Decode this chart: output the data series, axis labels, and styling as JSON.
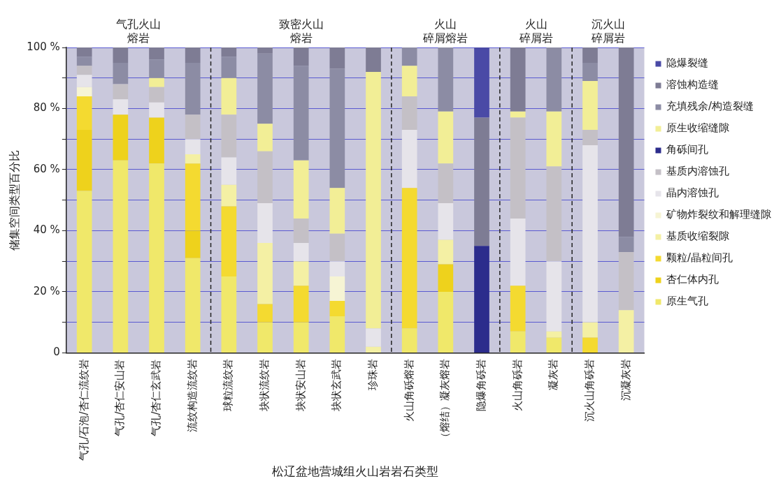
{
  "chart_data": {
    "type": "bar",
    "stacked": true,
    "xlabel": "松辽盆地营城组火山岩岩石类型",
    "ylabel": "储集空间类型百分比",
    "categories": [
      "气孔/石泡/杏仁流纹岩",
      "气孔/杏仁安山岩",
      "气孔/杏仁玄武岩",
      "流纹构造流纹岩",
      "球粒流纹岩",
      "块状流纹岩",
      "块状安山岩",
      "块状玄武岩",
      "珍珠岩",
      "火山角砾熔岩",
      "（熔结）凝灰熔岩",
      "隐爆角砾岩",
      "火山角砾岩",
      "凝灰岩",
      "沉火山角砾岩",
      "沉凝灰岩"
    ],
    "series": [
      {
        "name": "原生气孔",
        "color": "#f0e86a",
        "values": [
          53,
          63,
          62,
          31,
          25,
          10,
          10,
          12,
          0,
          8,
          20,
          0,
          7,
          5,
          0,
          0
        ]
      },
      {
        "name": "杏仁体内孔",
        "color": "#eed21c",
        "values": [
          20,
          15,
          15,
          9,
          0,
          0,
          0,
          0,
          0,
          0,
          9,
          0,
          0,
          0,
          0,
          0
        ]
      },
      {
        "name": "颗粒/晶粒间孔",
        "color": "#f4da30",
        "values": [
          11,
          0,
          0,
          22,
          23,
          6,
          12,
          5,
          0,
          46,
          0,
          0,
          15,
          0,
          5,
          0
        ]
      },
      {
        "name": "基质收缩裂隙",
        "color": "#f4f0a4",
        "values": [
          0,
          0,
          0,
          3,
          7,
          20,
          8,
          0,
          2,
          0,
          8,
          0,
          0,
          2,
          5,
          14
        ]
      },
      {
        "name": "矿物炸裂纹和解理缝隙",
        "color": "#f6f4d4",
        "values": [
          3,
          0,
          0,
          0,
          0,
          0,
          0,
          8,
          0,
          0,
          0,
          0,
          0,
          0,
          0,
          0
        ]
      },
      {
        "name": "晶内溶蚀孔",
        "color": "#e6e4ea",
        "values": [
          4,
          5,
          5,
          5,
          9,
          13,
          6,
          5,
          6,
          19,
          12,
          0,
          22,
          23,
          58,
          0
        ]
      },
      {
        "name": "基质内溶蚀孔",
        "color": "#c4c0c6",
        "values": [
          3,
          5,
          5,
          8,
          14,
          17,
          8,
          9,
          0,
          11,
          13,
          0,
          33,
          31,
          5,
          19
        ]
      },
      {
        "name": "角砾间孔",
        "color": "#2c2c8c",
        "values": [
          0,
          0,
          0,
          0,
          0,
          0,
          0,
          0,
          0,
          0,
          0,
          35,
          0,
          0,
          0,
          0
        ]
      },
      {
        "name": "原生收缩缝隙",
        "color": "#f2ee96",
        "values": [
          0,
          0,
          3,
          0,
          12,
          9,
          19,
          15,
          84,
          10,
          17,
          0,
          2,
          18,
          16,
          0
        ]
      },
      {
        "name": "充填残余/构造裂缝",
        "color": "#8c8ca4",
        "values": [
          3,
          7,
          6,
          17,
          7,
          23,
          31,
          39,
          0,
          6,
          21,
          0,
          0,
          21,
          6,
          5
        ]
      },
      {
        "name": "溶蚀构造缝",
        "color": "#7e7c94",
        "values": [
          3,
          5,
          4,
          5,
          3,
          2,
          6,
          7,
          8,
          0,
          0,
          42,
          21,
          0,
          5,
          62
        ]
      },
      {
        "name": "隐爆裂缝",
        "color": "#4a4aa6",
        "values": [
          0,
          0,
          0,
          0,
          0,
          0,
          0,
          0,
          0,
          0,
          0,
          23,
          0,
          0,
          0,
          0
        ]
      }
    ],
    "ylim": [
      0,
      100
    ],
    "yticks": [
      {
        "value": 0,
        "label": "0"
      },
      {
        "value": 10,
        "label": null
      },
      {
        "value": 20,
        "label": "20 %"
      },
      {
        "value": 30,
        "label": null
      },
      {
        "value": 40,
        "label": "40 %"
      },
      {
        "value": 50,
        "label": null
      },
      {
        "value": 60,
        "label": "60 %"
      },
      {
        "value": 70,
        "label": null
      },
      {
        "value": 80,
        "label": "80 %"
      },
      {
        "value": 90,
        "label": null
      },
      {
        "value": 100,
        "label": "100 %"
      }
    ],
    "grid": "y",
    "legend": "right",
    "annotations": [
      "气孔火山熔岩",
      "致密火山熔岩",
      "火山碎屑熔岩",
      "火山碎屑岩",
      "沉火山碎屑岩"
    ]
  }
}
